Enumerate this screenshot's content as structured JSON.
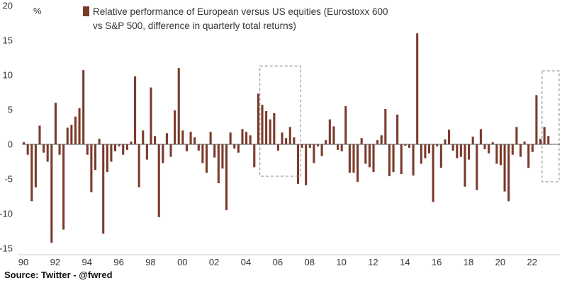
{
  "colors": {
    "bar": "#7b3a2a",
    "axis": "#555555",
    "highlight_box": "#999999"
  },
  "source": "Source: Twitter - @fwred",
  "chart_data": {
    "type": "bar",
    "unit_label": "%",
    "legend": "Relative performance of European versus US equities (Eurostoxx 600 vs S&P 500, difference in quarterly total returns)",
    "legend_lines": [
      "Relative performance of European versus US equities (Eurostoxx 600",
      "vs S&P 500, difference in quarterly total returns)"
    ],
    "ylim": [
      -15,
      20
    ],
    "yticks": [
      -15,
      -10,
      -5,
      0,
      5,
      10,
      15,
      20
    ],
    "xlim": [
      1990,
      2023.75
    ],
    "xticks": [
      {
        "x": 1990,
        "label": "90"
      },
      {
        "x": 1992,
        "label": "92"
      },
      {
        "x": 1994,
        "label": "94"
      },
      {
        "x": 1996,
        "label": "96"
      },
      {
        "x": 1998,
        "label": "98"
      },
      {
        "x": 2000,
        "label": "00"
      },
      {
        "x": 2002,
        "label": "02"
      },
      {
        "x": 2004,
        "label": "04"
      },
      {
        "x": 2006,
        "label": "06"
      },
      {
        "x": 2008,
        "label": "08"
      },
      {
        "x": 2010,
        "label": "10"
      },
      {
        "x": 2012,
        "label": "12"
      },
      {
        "x": 2014,
        "label": "14"
      },
      {
        "x": 2016,
        "label": "16"
      },
      {
        "x": 2018,
        "label": "18"
      },
      {
        "x": 2020,
        "label": "20"
      },
      {
        "x": 2022,
        "label": "22"
      }
    ],
    "x_start": 1990,
    "x_step": 0.25,
    "values": [
      0.3,
      -1.5,
      -8.2,
      -6.2,
      2.7,
      -1.2,
      -2.5,
      -14.2,
      6.0,
      -1.5,
      -12.3,
      2.4,
      2.8,
      4.0,
      5.2,
      10.7,
      -1.5,
      -6.9,
      -3.7,
      0.8,
      -12.9,
      -4.0,
      -2.5,
      -1.0,
      -0.3,
      -1.5,
      -0.8,
      0.4,
      9.8,
      -6.2,
      2.0,
      -2.2,
      8.2,
      1.2,
      -10.5,
      -2.7,
      1.6,
      -1.8,
      4.9,
      11.0,
      2.0,
      -1.0,
      1.8,
      1.0,
      -0.9,
      -2.7,
      -4.1,
      1.8,
      -1.9,
      -5.6,
      -3.5,
      -9.5,
      1.7,
      -0.6,
      -1.2,
      2.2,
      1.8,
      1.3,
      -3.3,
      7.3,
      5.7,
      4.8,
      3.6,
      4.5,
      -0.9,
      1.7,
      0.9,
      2.5,
      1.0,
      -5.7,
      -0.5,
      -5.9,
      -0.5,
      -2.7,
      -0.3,
      -1.7,
      0.6,
      3.6,
      2.6,
      -0.8,
      -1.0,
      5.5,
      -4.1,
      -4.1,
      -5.4,
      0.9,
      -2.8,
      -3.3,
      -4.0,
      0.6,
      1.3,
      5.1,
      -4.6,
      -4.0,
      4.3,
      -4.3,
      -0.2,
      -0.5,
      -4.5,
      16.0,
      -2.8,
      -2.0,
      -1.3,
      -8.3,
      -0.3,
      -3.4,
      0.7,
      2.1,
      -0.9,
      -2.0,
      -1.8,
      -6.1,
      -2.2,
      1.1,
      -6.6,
      2.2,
      -0.7,
      -1.3,
      0.3,
      -2.8,
      -3.0,
      -6.8,
      -8.2,
      -1.5,
      2.5,
      -1.8,
      0.4,
      -3.4,
      -1.1,
      7.1,
      0.8,
      2.5,
      1.2
    ],
    "highlight_boxes": [
      {
        "x0": 2005.0,
        "x1": 2007.5,
        "y0": -4.6,
        "y1": 11.3
      },
      {
        "x0": 2022.75,
        "x1": 2023.75,
        "y0": -5.4,
        "y1": 10.6
      }
    ]
  }
}
